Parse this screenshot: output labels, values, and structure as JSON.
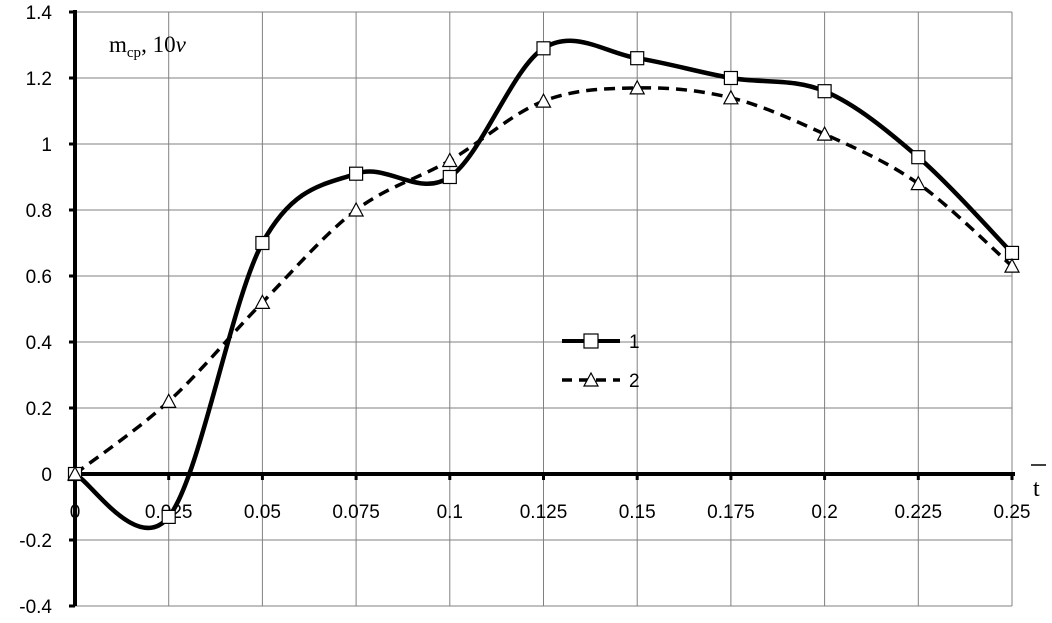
{
  "chart_data": {
    "type": "line",
    "ylabel": "m",
    "ylabel_subscript": "cp",
    "ylabel_rest": ", 10",
    "ylabel_italic": "v",
    "xlabel": "t",
    "xlim": [
      0,
      0.25
    ],
    "ylim": [
      -0.4,
      1.4
    ],
    "grid": true,
    "legend_position": "center-right",
    "x_ticks": [
      "0",
      "0.025",
      "0.05",
      "0.075",
      "0.1",
      "0.125",
      "0.15",
      "0.175",
      "0.2",
      "0.225",
      "0.25"
    ],
    "y_ticks": [
      "-0.4",
      "-0.2",
      "0",
      "0.2",
      "0.4",
      "0.6",
      "0.8",
      "1",
      "1.2",
      "1.4"
    ],
    "x": [
      0,
      0.025,
      0.05,
      0.075,
      0.1,
      0.125,
      0.15,
      0.175,
      0.2,
      0.225,
      0.25
    ],
    "series": [
      {
        "name": "1",
        "marker": "square",
        "line_style": "solid",
        "color": "#000000",
        "values": [
          0,
          -0.13,
          0.7,
          0.91,
          0.9,
          1.29,
          1.26,
          1.2,
          1.16,
          0.96,
          0.67
        ]
      },
      {
        "name": "2",
        "marker": "triangle",
        "line_style": "dashed",
        "color": "#000000",
        "values": [
          0,
          0.22,
          0.52,
          0.8,
          0.95,
          1.13,
          1.17,
          1.14,
          1.03,
          0.88,
          0.63
        ]
      }
    ]
  }
}
